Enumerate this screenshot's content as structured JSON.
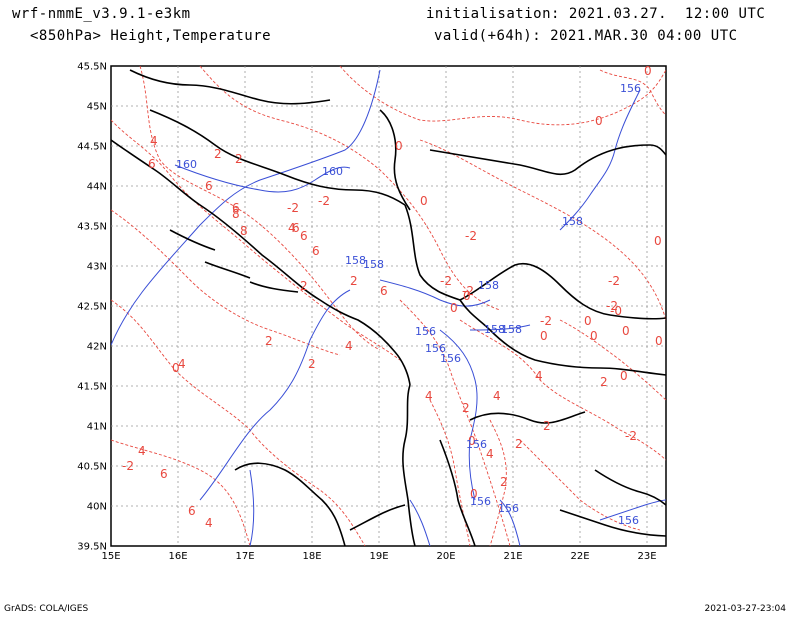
{
  "header": {
    "model": "wrf-nmmE_v3.9.1-e3km",
    "level": "<850hPa> Height,Temperature",
    "init": "initialisation: 2021.03.27.  12:00 UTC",
    "valid": "valid(+64h): 2021.MAR.30 04:00 UTC"
  },
  "axes": {
    "lat_labels": [
      "45.5N",
      "45N",
      "44.5N",
      "44N",
      "43.5N",
      "43N",
      "42.5N",
      "42N",
      "41.5N",
      "41N",
      "40.5N",
      "40N",
      "39.5N"
    ],
    "lon_labels": [
      "15E",
      "16E",
      "17E",
      "18E",
      "19E",
      "20E",
      "21E",
      "22E",
      "23E"
    ]
  },
  "colors": {
    "temperature": "#e8483f",
    "height": "#3a4fd6",
    "grid": "#999999",
    "coast": "#000000"
  },
  "temperature_labels": [
    "4",
    "6",
    "2",
    "2",
    "6",
    "6",
    "8",
    "8",
    "6",
    "6",
    "6",
    "4",
    "2",
    "2",
    "6",
    "4",
    "2",
    "2",
    "0",
    "0",
    "0",
    "-2",
    "-2",
    "-2",
    "-2",
    "-2",
    "-2",
    "-2",
    "-2",
    "0",
    "0",
    "0",
    "0",
    "2",
    "2",
    "4",
    "4",
    "4",
    "4",
    "2",
    "2",
    "2",
    "0",
    "0",
    "0",
    "0",
    "0",
    "0",
    "0",
    "0",
    "0",
    "-0",
    "-2",
    "-2",
    "4",
    "6",
    "6",
    "4",
    "4"
  ],
  "height_labels": [
    "160",
    "160",
    "158",
    "158",
    "158",
    "158",
    "156",
    "156",
    "156",
    "156",
    "158",
    "158",
    "156",
    "156",
    "156",
    "156"
  ],
  "footer": {
    "left": "GrADS: COLA/IGES",
    "right": "2021-03-27-23:04"
  }
}
